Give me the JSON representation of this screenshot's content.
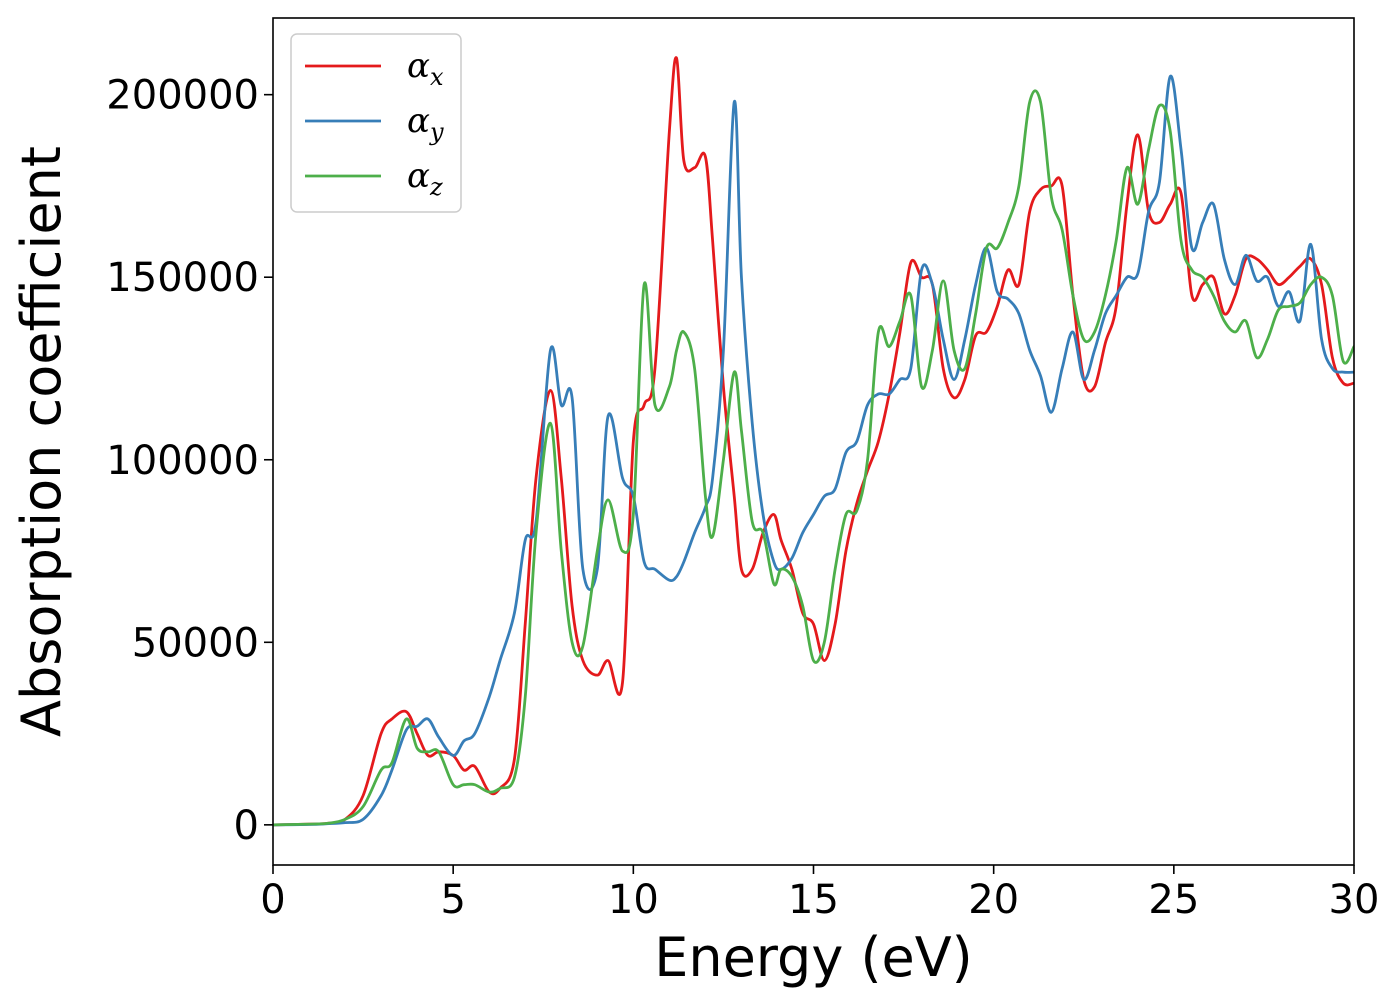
{
  "chart_data": {
    "type": "line",
    "title": "",
    "xlabel": "Energy (eV)",
    "ylabel": "Absorption coefficient",
    "xlim": [
      0,
      30
    ],
    "ylim": [
      -11000,
      221000
    ],
    "xticks": [
      0,
      5,
      10,
      15,
      20,
      25,
      30
    ],
    "yticks": [
      0,
      50000,
      100000,
      150000,
      200000
    ],
    "grid": false,
    "legend_position": "top-left",
    "series": [
      {
        "name": "αx",
        "base": "α",
        "sub": "x",
        "color": "#e41a1c",
        "x": [
          0,
          1,
          1.5,
          2,
          2.5,
          3,
          3.3,
          3.7,
          4,
          4.3,
          4.6,
          5,
          5.3,
          5.6,
          6,
          6.3,
          6.7,
          7,
          7.3,
          7.7,
          8,
          8.3,
          8.6,
          9,
          9.3,
          9.7,
          10,
          10.3,
          10.6,
          11,
          11.2,
          11.4,
          11.7,
          12,
          12.2,
          12.5,
          12.8,
          13,
          13.3,
          13.6,
          13.9,
          14.1,
          14.4,
          14.7,
          15,
          15.3,
          15.6,
          15.9,
          16.2,
          16.5,
          16.8,
          17.1,
          17.4,
          17.7,
          18,
          18.3,
          18.6,
          18.9,
          19.2,
          19.5,
          19.8,
          20.1,
          20.4,
          20.7,
          21,
          21.3,
          21.6,
          21.9,
          22.2,
          22.5,
          22.8,
          23.1,
          23.4,
          23.7,
          24,
          24.3,
          24.6,
          24.9,
          25.2,
          25.5,
          25.8,
          26.1,
          26.4,
          26.7,
          27,
          27.3,
          27.6,
          27.9,
          28.2,
          28.5,
          28.8,
          29.1,
          29.4,
          29.7,
          30
        ],
        "y": [
          0,
          200,
          400,
          1500,
          8000,
          25000,
          29000,
          31000,
          25000,
          19000,
          20000,
          19000,
          15000,
          16000,
          9000,
          10000,
          18000,
          55000,
          95000,
          119000,
          95000,
          60000,
          45000,
          41000,
          45000,
          39000,
          105000,
          115000,
          125000,
          190000,
          210000,
          182000,
          180000,
          183000,
          160000,
          120000,
          90000,
          70000,
          70000,
          80000,
          85000,
          78000,
          70000,
          58000,
          55000,
          45000,
          55000,
          75000,
          88000,
          97000,
          105000,
          118000,
          135000,
          154000,
          150000,
          148000,
          125000,
          117000,
          122000,
          134000,
          135000,
          142000,
          152000,
          148000,
          168000,
          174000,
          175000,
          175000,
          145000,
          122000,
          120000,
          132000,
          142000,
          170000,
          189000,
          168000,
          165000,
          170000,
          173000,
          145000,
          148000,
          150000,
          140000,
          145000,
          155000,
          155000,
          152000,
          148000,
          150000,
          153000,
          155000,
          148000,
          128000,
          121000,
          121000
        ]
      },
      {
        "name": "αy",
        "base": "α",
        "sub": "y",
        "color": "#377eb8",
        "x": [
          0,
          1,
          1.5,
          2,
          2.5,
          3,
          3.3,
          3.7,
          4,
          4.3,
          4.6,
          5,
          5.3,
          5.6,
          6,
          6.3,
          6.7,
          7,
          7.3,
          7.7,
          8,
          8.3,
          8.6,
          9,
          9.3,
          9.7,
          10,
          10.3,
          10.6,
          11,
          11.2,
          11.4,
          11.7,
          12,
          12.2,
          12.5,
          12.8,
          13,
          13.3,
          13.6,
          13.9,
          14.1,
          14.4,
          14.7,
          15,
          15.3,
          15.6,
          15.9,
          16.2,
          16.5,
          16.8,
          17.1,
          17.4,
          17.7,
          18,
          18.3,
          18.6,
          18.9,
          19.2,
          19.5,
          19.8,
          20.1,
          20.4,
          20.7,
          21,
          21.3,
          21.6,
          21.9,
          22.2,
          22.5,
          22.8,
          23.1,
          23.4,
          23.7,
          24,
          24.3,
          24.6,
          24.9,
          25.2,
          25.5,
          25.8,
          26.1,
          26.4,
          26.7,
          27,
          27.3,
          27.6,
          27.9,
          28.2,
          28.5,
          28.8,
          29.1,
          29.4,
          29.7,
          30
        ],
        "y": [
          0,
          100,
          300,
          600,
          1500,
          8000,
          15000,
          26000,
          27000,
          29000,
          24000,
          19000,
          23000,
          25000,
          35000,
          45000,
          58000,
          78000,
          83000,
          130000,
          115000,
          117000,
          70000,
          70000,
          112000,
          95000,
          90000,
          72000,
          70000,
          67000,
          68000,
          72000,
          80000,
          87000,
          95000,
          130000,
          198000,
          150000,
          110000,
          85000,
          72000,
          70000,
          73000,
          80000,
          85000,
          90000,
          92000,
          102000,
          105000,
          115000,
          118000,
          118000,
          122000,
          125000,
          152000,
          148000,
          133000,
          122000,
          133000,
          148000,
          158000,
          146000,
          144000,
          140000,
          130000,
          123000,
          113000,
          125000,
          135000,
          122000,
          130000,
          140000,
          145000,
          150000,
          151000,
          168000,
          176000,
          205000,
          185000,
          158000,
          165000,
          170000,
          155000,
          148000,
          156000,
          149000,
          150000,
          142000,
          146000,
          138000,
          159000,
          133000,
          125000,
          124000,
          124000
        ]
      },
      {
        "name": "αz",
        "base": "α",
        "sub": "z",
        "color": "#4daf4a",
        "x": [
          0,
          1,
          1.5,
          2,
          2.5,
          3,
          3.3,
          3.7,
          4,
          4.3,
          4.6,
          5,
          5.3,
          5.6,
          6,
          6.3,
          6.7,
          7,
          7.3,
          7.7,
          8,
          8.3,
          8.6,
          9,
          9.3,
          9.7,
          10,
          10.3,
          10.6,
          11,
          11.2,
          11.4,
          11.7,
          12,
          12.2,
          12.5,
          12.8,
          13,
          13.3,
          13.6,
          13.9,
          14.1,
          14.4,
          14.7,
          15,
          15.3,
          15.6,
          15.9,
          16.2,
          16.5,
          16.8,
          17.1,
          17.4,
          17.7,
          18,
          18.3,
          18.6,
          18.9,
          19.2,
          19.5,
          19.8,
          20.1,
          20.4,
          20.7,
          21,
          21.3,
          21.6,
          21.9,
          22.2,
          22.5,
          22.8,
          23.1,
          23.4,
          23.7,
          24,
          24.3,
          24.6,
          24.9,
          25.2,
          25.5,
          25.8,
          26.1,
          26.4,
          26.7,
          27,
          27.3,
          27.6,
          27.9,
          28.2,
          28.5,
          28.8,
          29.1,
          29.4,
          29.7,
          30
        ],
        "y": [
          0,
          200,
          400,
          1500,
          5000,
          15000,
          17000,
          29000,
          21000,
          20000,
          20000,
          11000,
          11000,
          11000,
          9000,
          10000,
          13000,
          35000,
          80000,
          110000,
          75000,
          50000,
          49000,
          75000,
          89000,
          75000,
          85000,
          148000,
          115000,
          120000,
          130000,
          135000,
          125000,
          90000,
          79000,
          100000,
          124000,
          108000,
          83000,
          80000,
          66000,
          70000,
          68000,
          60000,
          45000,
          50000,
          70000,
          85000,
          86000,
          100000,
          135000,
          131000,
          138000,
          145000,
          120000,
          130000,
          149000,
          130000,
          125000,
          140000,
          158000,
          158000,
          165000,
          175000,
          198000,
          198000,
          172000,
          163000,
          145000,
          133000,
          135000,
          145000,
          160000,
          180000,
          170000,
          185000,
          197000,
          190000,
          160000,
          152000,
          150000,
          145000,
          138000,
          135000,
          138000,
          128000,
          133000,
          141000,
          142000,
          143000,
          148000,
          150000,
          145000,
          127000,
          131000
        ]
      }
    ]
  }
}
